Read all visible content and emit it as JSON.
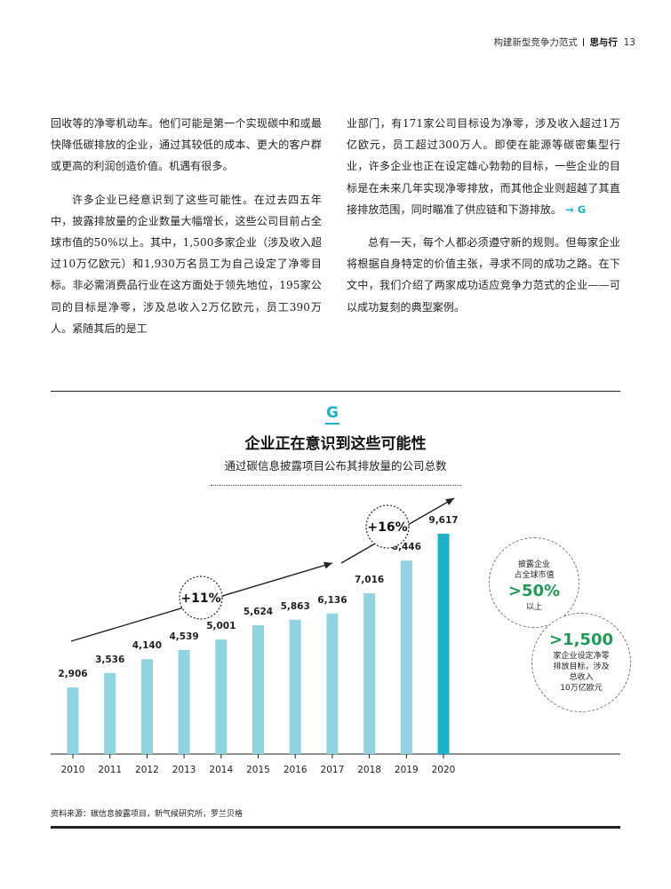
{
  "header": {
    "section": "构建新型竞争力范式",
    "chapter": "思与行",
    "page_number": "13"
  },
  "body": {
    "left_paragraphs": [
      "回收等的净零机动车。他们可能是第一个实现碳中和或最快降低碳排放的企业，通过其较低的成本、更大的客户群或更高的利润创造价值。机遇有很多。",
      "许多企业已经意识到了这些可能性。在过去四五年中，披露排放量的企业数量大幅增长，这些公司目前占全球市值的50%以上。其中，1,500多家企业（涉及收入超过10万亿欧元）和1,930万名员工为自己设定了净零目标。非必需消费品行业在这方面处于领先地位，195家公司的目标是净零，涉及总收入2万亿欧元，员工390万人。紧随其后的是工"
    ],
    "right_paragraphs": [
      "业部门，有171家公司目标设为净零，涉及收入超过1万亿欧元，员工超过300万人。即使在能源等碳密集型行业，许多企业也正在设定雄心勃勃的目标，一些企业的目标是在未来几年实现净零排放，而其他企业则超越了其直接排放范围，同时瞄准了供应链和下游排放。",
      "总有一天，每个人都必须遵守新的规则。但每家企业将根据自身特定的价值主张，寻求不同的成功之路。在下文中，我们介绍了两家成功适应竞争力范式的企业——可以成功复刻的典型案例。"
    ],
    "figure_ref": "→ G"
  },
  "figure": {
    "marker": "G",
    "title": "企业正在意识到这些可能性",
    "subtitle": "通过碳信息披露项目公布其排放量的公司总数",
    "source": "资料来源：碳信息披露项目，新气候研究所，罗兰贝格"
  },
  "callouts": {
    "market_top": "披露企业",
    "market_top2": "占全球市值",
    "market_value": ">50%",
    "market_bottom": "以上",
    "netzero_value": ">1,500",
    "netzero_l1": "家企业设定净零",
    "netzero_l2": "排放目标，涉及",
    "netzero_l3": "总收入",
    "netzero_l4": "10万亿欧元"
  },
  "chart_data": {
    "type": "bar",
    "title": "企业正在意识到这些可能性",
    "subtitle": "通过碳信息披露项目公布其排放量的公司总数",
    "categories": [
      "2010",
      "2011",
      "2012",
      "2013",
      "2014",
      "2015",
      "2016",
      "2017",
      "2018",
      "2019",
      "2020"
    ],
    "values": [
      2906,
      3536,
      4140,
      4539,
      5001,
      5624,
      5863,
      6136,
      7016,
      8446,
      9617
    ],
    "value_labels": [
      "2,906",
      "3,536",
      "4,140",
      "4,539",
      "5,001",
      "5,624",
      "5,863",
      "6,136",
      "7,016",
      "8,446",
      "9,617"
    ],
    "ylim": [
      0,
      10000
    ],
    "growth_annotations": [
      {
        "label": "+11%",
        "from": "2010",
        "to": "2017"
      },
      {
        "label": "+16%",
        "from": "2017",
        "to": "2020"
      }
    ],
    "colors": {
      "bar": "#8fd4e0",
      "highlight": "#19b3c9",
      "arrow": "#222222",
      "accent_green": "#1e9a52",
      "teal": "#1bb3c6"
    }
  }
}
